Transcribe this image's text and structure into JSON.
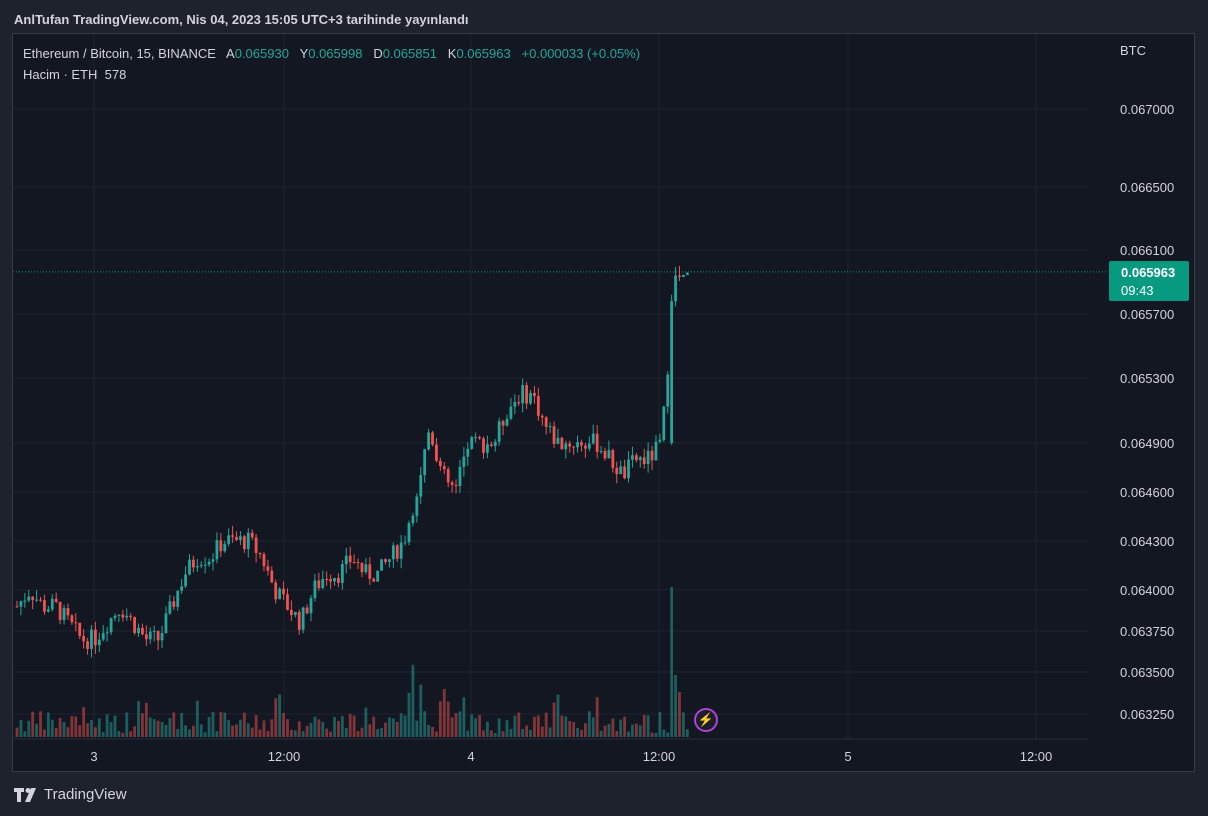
{
  "header": {
    "published": "AnlTufan TradingView.com, Nis 04, 2023 15:05 UTC+3 tarihinde yayınlandı"
  },
  "legend": {
    "symbol": "Ethereum / Bitcoin, 15, BINANCE",
    "open_label": "A",
    "open": "0.065930",
    "high_label": "Y",
    "high": "0.065998",
    "low_label": "D",
    "low": "0.065851",
    "close_label": "K",
    "close": "0.065963",
    "change": "+0.000033 (+0.05%)"
  },
  "volume": {
    "label": "Hacim · ETH",
    "value": "578"
  },
  "price_axis": {
    "currency": "BTC"
  },
  "price_tag": {
    "price": "0.065963",
    "countdown": "09:43"
  },
  "footer": {
    "brand": "TradingView"
  },
  "colors": {
    "up": "#26a69a",
    "down": "#ef5350",
    "tag": "#089981",
    "background": "#131722"
  },
  "chart_data": {
    "type": "candlestick",
    "timeframe": "15",
    "symbol": "ETH/BTC",
    "exchange": "BINANCE",
    "y_tick_labels": [
      "0.067000",
      "0.066500",
      "0.066100",
      "0.065700",
      "0.065300",
      "0.064900",
      "0.064600",
      "0.064300",
      "0.064000",
      "0.063750",
      "0.063500",
      "0.063250"
    ],
    "x_tick_labels": [
      "3",
      "12:00",
      "4",
      "12:00",
      "5",
      "12:00"
    ],
    "current_price": 0.065963,
    "ohlc_closes_approx": [
      0.0639,
      0.064,
      0.0639,
      0.0639,
      0.0638,
      0.0637,
      0.0637,
      0.0638,
      0.0639,
      0.0638,
      0.0637,
      0.0637,
      0.0639,
      0.0641,
      0.0642,
      0.0642,
      0.0643,
      0.0643,
      0.0643,
      0.0642,
      0.064,
      0.0639,
      0.0638,
      0.064,
      0.0641,
      0.0641,
      0.0642,
      0.0641,
      0.0641,
      0.0642,
      0.0643,
      0.0646,
      0.065,
      0.0647,
      0.0646,
      0.0649,
      0.0649,
      0.0649,
      0.0651,
      0.0652,
      0.0652,
      0.065,
      0.0649,
      0.0649,
      0.0649,
      0.0649,
      0.0648,
      0.0647,
      0.0648,
      0.0648,
      0.0649,
      0.0659,
      0.066
    ],
    "volume_spike_note": "largest volume bar near 12:00 on day 4"
  }
}
